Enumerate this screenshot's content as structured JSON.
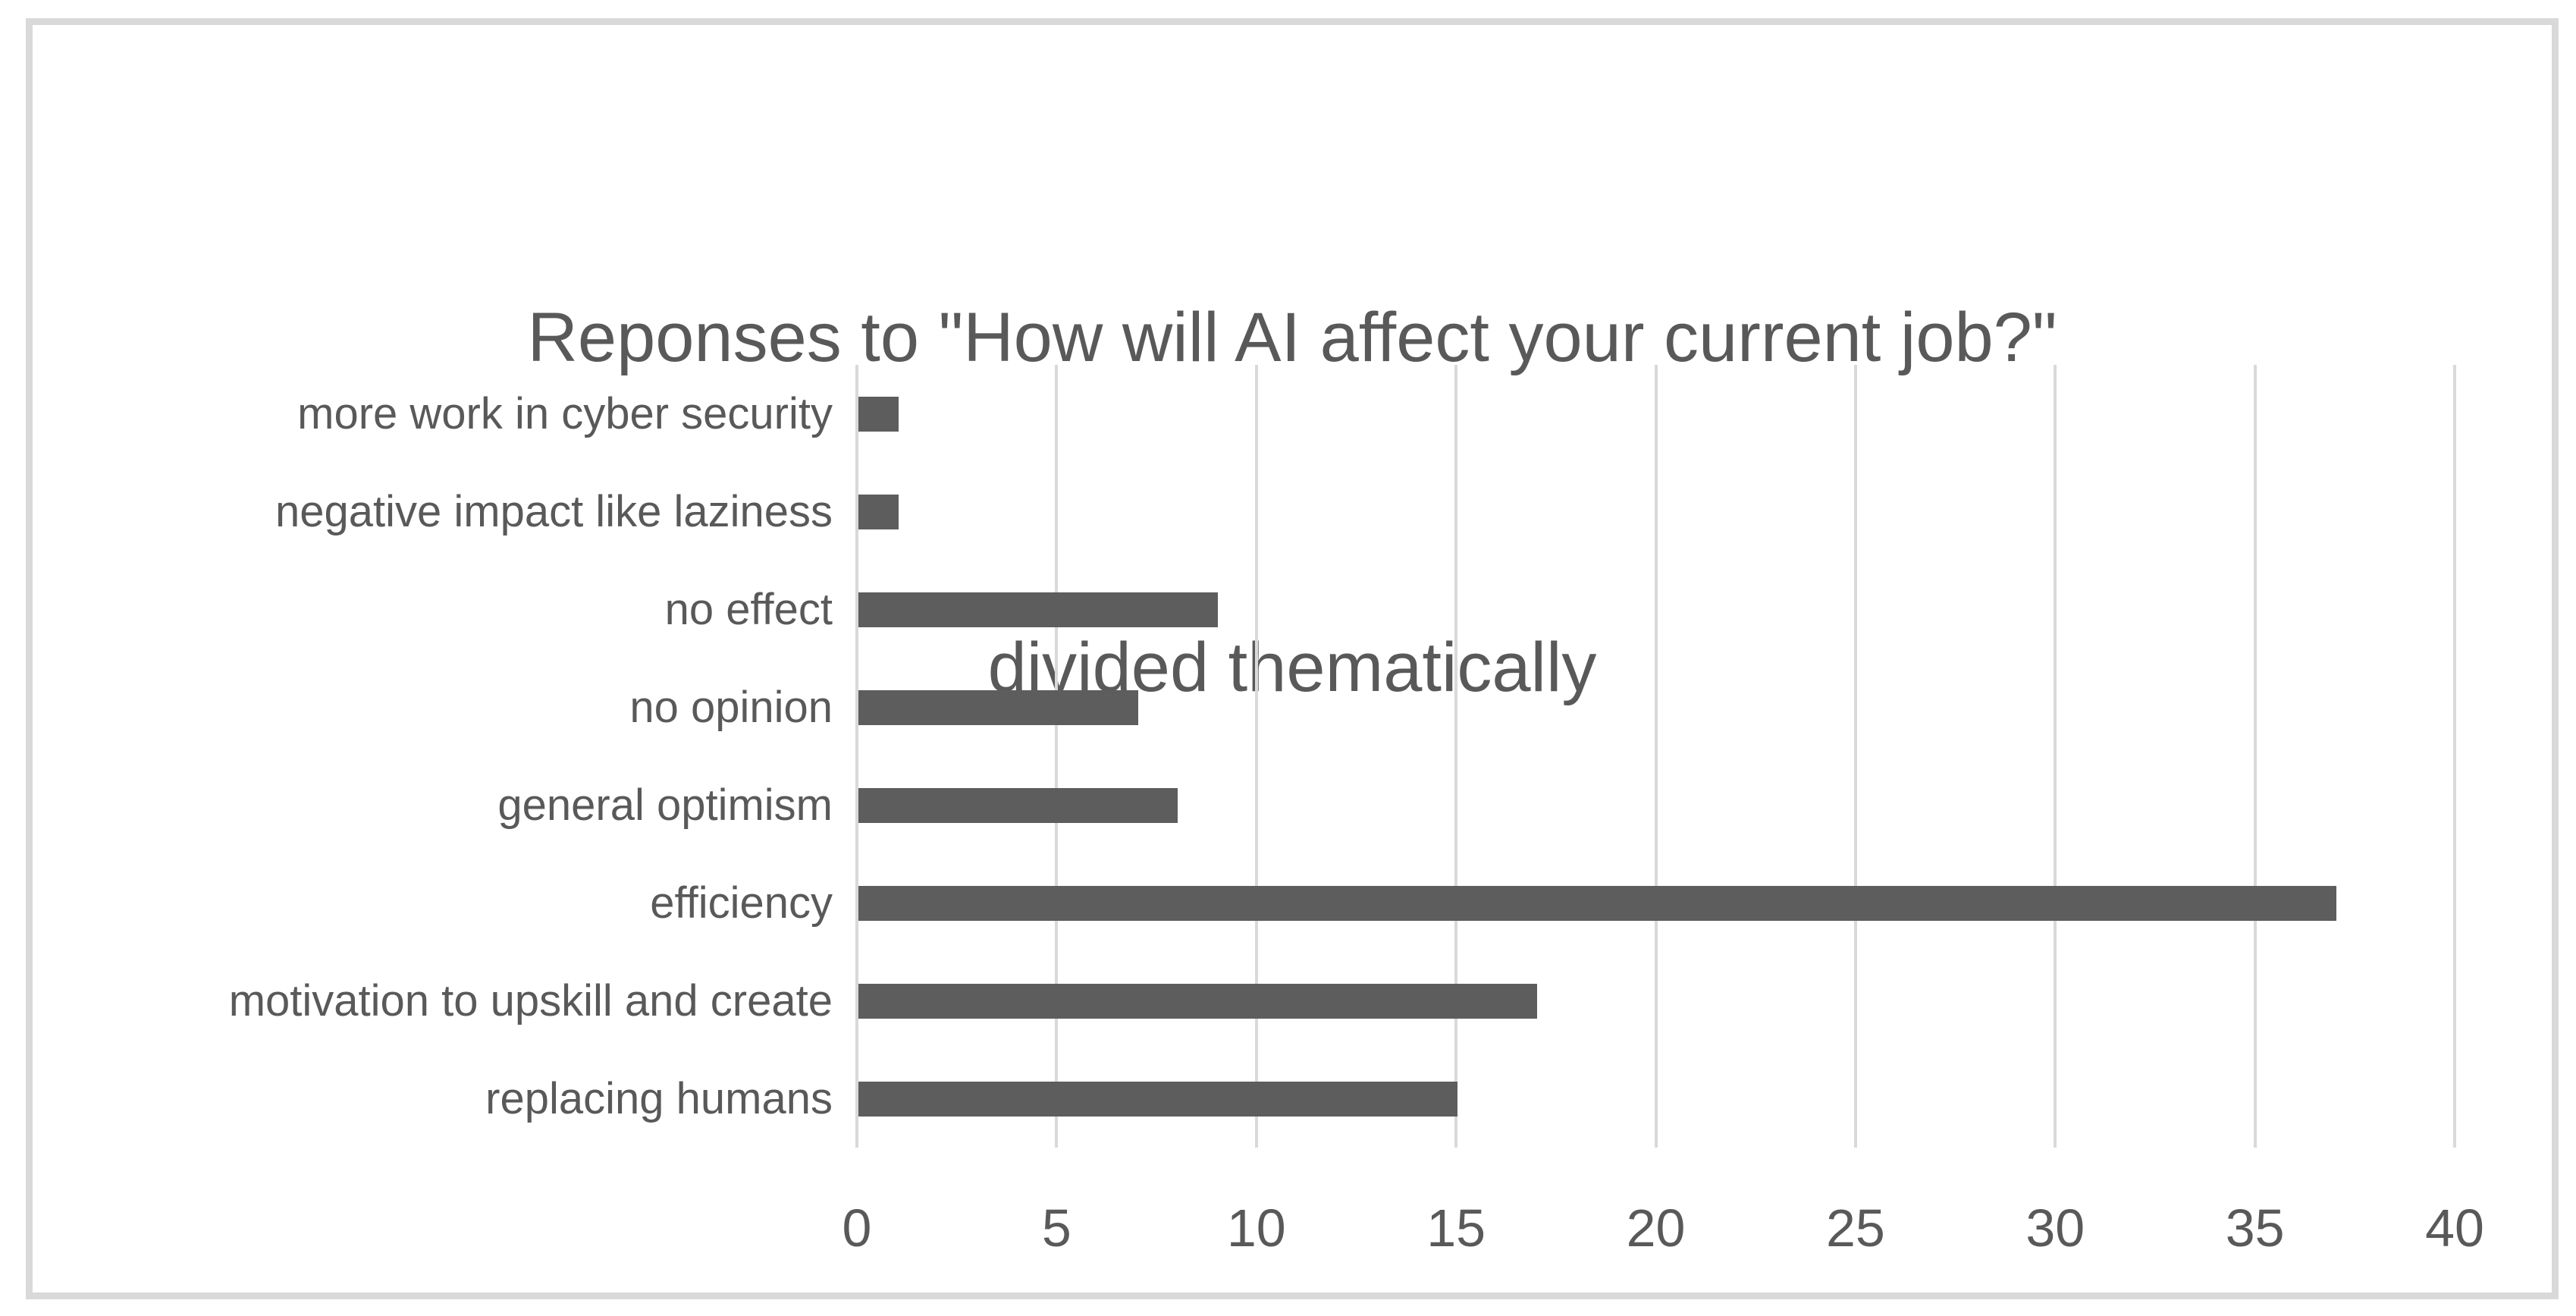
{
  "title": {
    "line1": "Reponses to \"How will AI affect your current job?\"",
    "line2": "divided thematically"
  },
  "chart_data": {
    "type": "bar",
    "orientation": "horizontal",
    "title": "Reponses to \"How will AI affect your current job?\" divided thematically",
    "categories": [
      "more work in cyber security",
      "negative impact like laziness",
      "no effect",
      "no opinion",
      "general optimism",
      "efficiency",
      "motivation to upskill and create",
      "replacing humans"
    ],
    "values": [
      1,
      1,
      9,
      7,
      8,
      37,
      17,
      15
    ],
    "xlabel": "",
    "ylabel": "",
    "xlim": [
      0,
      40
    ],
    "xticks": [
      0,
      5,
      10,
      15,
      20,
      25,
      30,
      35,
      40
    ],
    "grid": "vertical-only",
    "legend": "none",
    "data_labels": "none",
    "colors": {
      "bar": "#5D5D5D",
      "gridline": "#D9D9D9",
      "text": "#595959",
      "border": "#D9D9D9",
      "background": "#FFFFFF"
    }
  }
}
